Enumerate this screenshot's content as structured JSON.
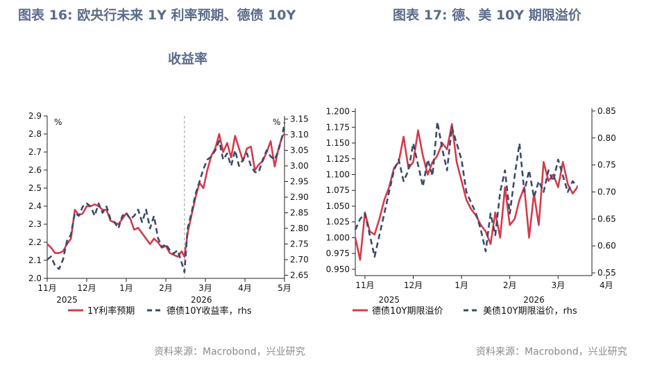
{
  "titles": {
    "left_line1": "图表 16: 欧央行未来 1Y 利率预期、德债 10Y",
    "left_line2": "收益率",
    "right": "图表 17: 德、美 10Y 期限溢价"
  },
  "sources": {
    "left": "资料来源：Macrobond，兴业研究",
    "right": "资料来源：Macrobond，兴业研究"
  },
  "colors": {
    "red": "#d43a4b",
    "navy": "#3b4a6b",
    "vline": "#9a9a9a"
  },
  "chart_data": [
    {
      "type": "line",
      "unit_left": "%",
      "unit_right": "%",
      "x_ticks": [
        "11月",
        "12月",
        "1月",
        "2月",
        "3月",
        "4月",
        "5月"
      ],
      "year_labels": [
        "2025",
        "2026"
      ],
      "ylim": [
        2.0,
        2.9
      ],
      "y_ticks": [
        "2.9",
        "2.8",
        "2.7",
        "2.6",
        "2.5",
        "2.4",
        "2.3",
        "2.2",
        "2.1",
        "2.0"
      ],
      "y2lim": [
        2.64,
        3.16
      ],
      "y2_ticks": [
        "3.15",
        "3.10",
        "3.05",
        "3.00",
        "2.95",
        "2.90",
        "2.85",
        "2.80",
        "2.75",
        "2.70",
        "2.65"
      ],
      "vline_x": 3.47,
      "series": [
        {
          "name": "1Y利率预期",
          "axis": "left",
          "style": "solid",
          "x": [
            0,
            0.1,
            0.2,
            0.3,
            0.4,
            0.5,
            0.6,
            0.7,
            0.8,
            0.9,
            1.0,
            1.1,
            1.2,
            1.3,
            1.4,
            1.5,
            1.6,
            1.7,
            1.8,
            1.9,
            2.0,
            2.1,
            2.2,
            2.3,
            2.4,
            2.5,
            2.6,
            2.7,
            2.8,
            2.9,
            3.0,
            3.1,
            3.2,
            3.3,
            3.4,
            3.47,
            3.55,
            3.65,
            3.75,
            3.85,
            3.95,
            4.05,
            4.15,
            4.25,
            4.35,
            4.45,
            4.55,
            4.65,
            4.75,
            4.85,
            4.95,
            5.05,
            5.15,
            5.25,
            5.35,
            5.45,
            5.55,
            5.65,
            5.75,
            5.85,
            5.95,
            6.0
          ],
          "values": [
            2.19,
            2.17,
            2.14,
            2.14,
            2.15,
            2.19,
            2.22,
            2.38,
            2.35,
            2.36,
            2.4,
            2.4,
            2.41,
            2.4,
            2.38,
            2.38,
            2.32,
            2.31,
            2.3,
            2.33,
            2.36,
            2.33,
            2.27,
            2.28,
            2.25,
            2.22,
            2.19,
            2.22,
            2.2,
            2.17,
            2.18,
            2.14,
            2.13,
            2.12,
            2.15,
            2.12,
            2.25,
            2.35,
            2.45,
            2.53,
            2.5,
            2.6,
            2.68,
            2.72,
            2.8,
            2.7,
            2.75,
            2.67,
            2.79,
            2.72,
            2.65,
            2.72,
            2.73,
            2.6,
            2.63,
            2.65,
            2.7,
            2.76,
            2.62,
            2.72,
            2.79,
            2.8
          ]
        },
        {
          "name": "德债10Y收益率，rhs",
          "axis": "right",
          "style": "dashed",
          "x": [
            0,
            0.1,
            0.2,
            0.3,
            0.4,
            0.5,
            0.6,
            0.7,
            0.8,
            0.9,
            1.0,
            1.1,
            1.2,
            1.3,
            1.4,
            1.5,
            1.6,
            1.7,
            1.8,
            1.9,
            2.0,
            2.1,
            2.2,
            2.3,
            2.4,
            2.5,
            2.6,
            2.7,
            2.8,
            2.9,
            3.0,
            3.1,
            3.2,
            3.3,
            3.4,
            3.47,
            3.55,
            3.65,
            3.75,
            3.85,
            3.95,
            4.05,
            4.15,
            4.25,
            4.35,
            4.45,
            4.55,
            4.65,
            4.75,
            4.85,
            4.95,
            5.05,
            5.15,
            5.25,
            5.35,
            5.45,
            5.55,
            5.65,
            5.75,
            5.85,
            5.95,
            6.0
          ],
          "values": [
            2.7,
            2.71,
            2.68,
            2.67,
            2.7,
            2.76,
            2.78,
            2.85,
            2.84,
            2.87,
            2.88,
            2.87,
            2.84,
            2.88,
            2.85,
            2.87,
            2.83,
            2.82,
            2.8,
            2.84,
            2.85,
            2.83,
            2.84,
            2.86,
            2.82,
            2.86,
            2.8,
            2.84,
            2.77,
            2.74,
            2.75,
            2.73,
            2.72,
            2.73,
            2.69,
            2.66,
            2.8,
            2.85,
            2.91,
            2.95,
            2.99,
            3.02,
            3.03,
            3.05,
            3.08,
            3.02,
            3.04,
            3.0,
            3.05,
            3.0,
            3.02,
            3.04,
            3.0,
            2.98,
            2.98,
            3.02,
            3.05,
            3.03,
            3.02,
            3.05,
            3.1,
            3.14
          ]
        }
      ]
    },
    {
      "type": "line",
      "x_ticks": [
        "11月",
        "12月",
        "1月",
        "2月",
        "3月",
        "4月"
      ],
      "year_labels": [
        "2025",
        "2026"
      ],
      "ylim": [
        0.94,
        1.205
      ],
      "y_ticks": [
        "1.200",
        "1.175",
        "1.150",
        "1.125",
        "1.100",
        "1.075",
        "1.050",
        "1.025",
        "1.000",
        "0.975",
        "0.950"
      ],
      "y2lim": [
        0.545,
        0.855
      ],
      "y2_ticks": [
        "0.85",
        "0.80",
        "0.75",
        "0.70",
        "0.65",
        "0.60",
        "0.55"
      ],
      "series": [
        {
          "name": "德债10Y期限溢价",
          "axis": "left",
          "style": "solid",
          "x": [
            0,
            0.1,
            0.2,
            0.3,
            0.4,
            0.5,
            0.6,
            0.7,
            0.8,
            0.9,
            1.0,
            1.1,
            1.2,
            1.3,
            1.4,
            1.5,
            1.6,
            1.7,
            1.8,
            1.9,
            2.0,
            2.1,
            2.2,
            2.3,
            2.4,
            2.5,
            2.6,
            2.7,
            2.8,
            2.9,
            3.0,
            3.1,
            3.2,
            3.3,
            3.4,
            3.5,
            3.6,
            3.7,
            3.8,
            3.9,
            4.0,
            4.1,
            4.2,
            4.3,
            4.4,
            4.5,
            4.6
          ],
          "values": [
            1.0,
            0.965,
            1.04,
            1.01,
            1.005,
            1.03,
            1.06,
            1.08,
            1.11,
            1.12,
            1.16,
            1.11,
            1.12,
            1.17,
            1.13,
            1.1,
            1.12,
            1.13,
            1.15,
            1.14,
            1.18,
            1.12,
            1.09,
            1.06,
            1.045,
            1.035,
            1.02,
            1.01,
            0.99,
            1.04,
            1.0,
            1.08,
            1.02,
            1.03,
            1.06,
            1.08,
            1.0,
            1.07,
            1.02,
            1.12,
            1.09,
            1.1,
            1.08,
            1.12,
            1.085,
            1.07,
            1.08
          ]
        },
        {
          "name": "美债10Y期限溢价，rhs",
          "axis": "right",
          "style": "dashed",
          "x": [
            0,
            0.1,
            0.2,
            0.3,
            0.4,
            0.5,
            0.6,
            0.7,
            0.8,
            0.9,
            1.0,
            1.1,
            1.2,
            1.3,
            1.4,
            1.5,
            1.6,
            1.7,
            1.8,
            1.9,
            2.0,
            2.1,
            2.2,
            2.3,
            2.4,
            2.5,
            2.6,
            2.7,
            2.8,
            2.9,
            3.0,
            3.1,
            3.2,
            3.3,
            3.4,
            3.5,
            3.6,
            3.7,
            3.8,
            3.9,
            4.0,
            4.1,
            4.2,
            4.3,
            4.4,
            4.5,
            4.6
          ],
          "values": [
            0.63,
            0.65,
            0.66,
            0.62,
            0.58,
            0.62,
            0.66,
            0.7,
            0.74,
            0.76,
            0.72,
            0.74,
            0.79,
            0.75,
            0.71,
            0.76,
            0.73,
            0.83,
            0.78,
            0.74,
            0.82,
            0.79,
            0.76,
            0.7,
            0.68,
            0.66,
            0.63,
            0.59,
            0.66,
            0.62,
            0.7,
            0.74,
            0.66,
            0.73,
            0.79,
            0.7,
            0.74,
            0.69,
            0.72,
            0.7,
            0.74,
            0.72,
            0.76,
            0.73,
            0.7,
            0.72,
            0.71
          ]
        }
      ]
    }
  ]
}
